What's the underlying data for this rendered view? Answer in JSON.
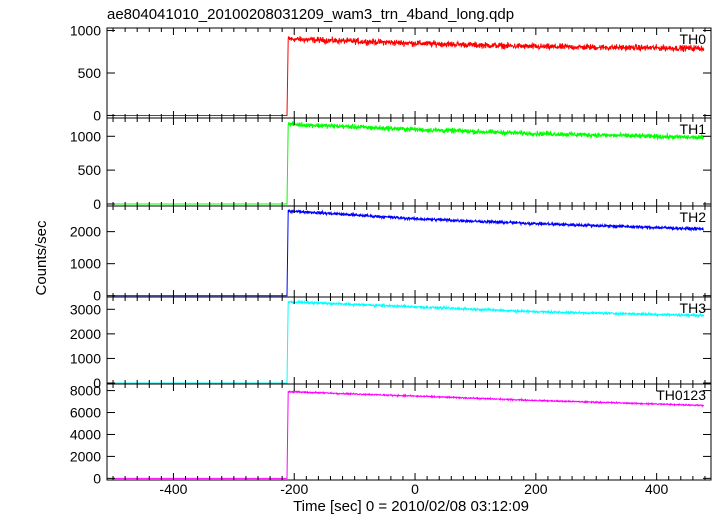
{
  "chart_data": {
    "type": "line",
    "title": "ae804041010_20100208031209_wam3_trn_4band_long.qdp",
    "xlabel": "Time [sec] 0 = 2010/02/08 03:12:09",
    "ylabel": "Counts/sec",
    "xlim": [
      -510,
      490
    ],
    "x_ticks": [
      -400,
      -200,
      0,
      200,
      400
    ],
    "step_time": -210,
    "data_end": 478,
    "panels": [
      {
        "name": "TH0",
        "color": "#ff0000",
        "ylim": [
          -30,
          1030
        ],
        "y_ticks": [
          0,
          500,
          1000
        ],
        "series": {
          "x": [
            -500,
            -212,
            -210,
            0,
            200,
            478
          ],
          "y": [
            0,
            0,
            900,
            850,
            810,
            790
          ]
        },
        "noise": 35
      },
      {
        "name": "TH1",
        "color": "#00ff00",
        "ylim": [
          -30,
          1270
        ],
        "y_ticks": [
          0,
          500,
          1000
        ],
        "series": {
          "x": [
            -500,
            -212,
            -210,
            0,
            200,
            478
          ],
          "y": [
            0,
            0,
            1180,
            1100,
            1040,
            980
          ]
        },
        "noise": 35
      },
      {
        "name": "TH2",
        "color": "#0000ff",
        "ylim": [
          -40,
          2800
        ],
        "y_ticks": [
          0,
          1000,
          2000
        ],
        "series": {
          "x": [
            -500,
            -212,
            -210,
            0,
            200,
            478
          ],
          "y": [
            0,
            0,
            2650,
            2400,
            2250,
            2080
          ]
        },
        "noise": 45
      },
      {
        "name": "TH3",
        "color": "#00ffff",
        "ylim": [
          -40,
          3500
        ],
        "y_ticks": [
          0,
          1000,
          2000,
          3000
        ],
        "series": {
          "x": [
            -500,
            -212,
            -210,
            0,
            200,
            478
          ],
          "y": [
            0,
            0,
            3300,
            3100,
            2900,
            2750
          ]
        },
        "noise": 45
      },
      {
        "name": "TH0123",
        "color": "#ff00ff",
        "ylim": [
          -150,
          8600
        ],
        "y_ticks": [
          0,
          2000,
          4000,
          6000,
          8000
        ],
        "series": {
          "x": [
            -500,
            -212,
            -210,
            0,
            200,
            478
          ],
          "y": [
            0,
            0,
            7900,
            7500,
            7100,
            6650
          ]
        },
        "noise": 60
      }
    ]
  }
}
